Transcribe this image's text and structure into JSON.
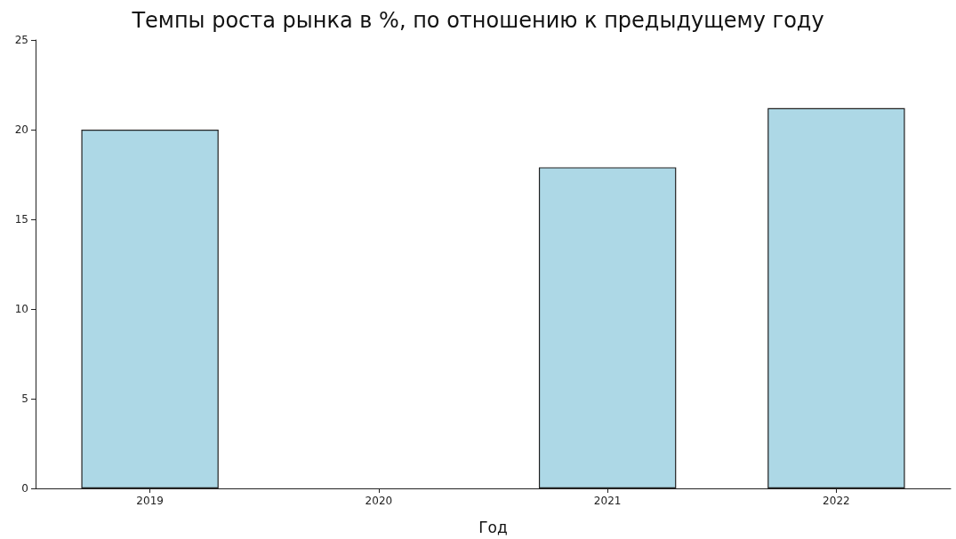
{
  "chart_data": {
    "type": "bar",
    "title": "Темпы роста рынка в %, по отношению к предыдущему году",
    "xlabel": "Год",
    "categories": [
      "2019",
      "2020",
      "2021",
      "2022"
    ],
    "values": [
      20,
      null,
      17.9,
      21.2
    ],
    "color": "#add8e6",
    "ylim": [
      0,
      25
    ],
    "yticks": [
      0,
      5,
      10,
      15,
      20,
      25
    ],
    "grid": false
  }
}
